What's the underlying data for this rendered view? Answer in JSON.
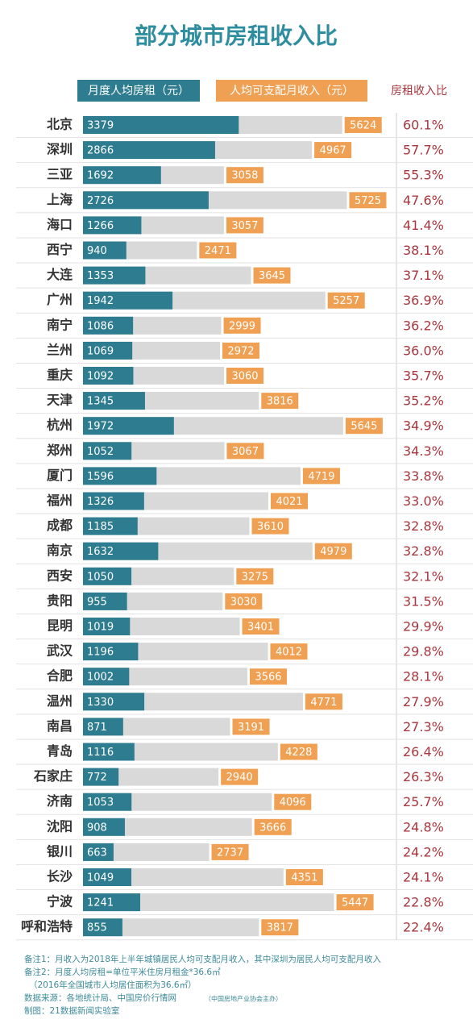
{
  "chart_data": {
    "type": "bar",
    "title": "部分城市房租收入比",
    "categories": [
      "北京",
      "深圳",
      "三亚",
      "上海",
      "海口",
      "西宁",
      "大连",
      "广州",
      "南宁",
      "兰州",
      "重庆",
      "天津",
      "杭州",
      "郑州",
      "厦门",
      "福州",
      "成都",
      "南京",
      "西安",
      "贵阳",
      "昆明",
      "武汉",
      "合肥",
      "温州",
      "南昌",
      "青岛",
      "石家庄",
      "济南",
      "沈阳",
      "银川",
      "长沙",
      "宁波",
      "呼和浩特"
    ],
    "series": [
      {
        "name": "月度人均房租（元）",
        "color": "#2e7c90",
        "values": [
          3379,
          2866,
          1692,
          2726,
          1266,
          940,
          1353,
          1942,
          1086,
          1069,
          1092,
          1345,
          1972,
          1052,
          1596,
          1326,
          1185,
          1632,
          1050,
          955,
          1019,
          1196,
          1002,
          1330,
          871,
          1116,
          772,
          1053,
          908,
          663,
          1049,
          1241,
          855
        ]
      },
      {
        "name": "人均可支配月收入（元）",
        "color": "#f0a052",
        "values": [
          5624,
          4967,
          3058,
          5725,
          3057,
          2471,
          3645,
          5257,
          2999,
          2972,
          3060,
          3816,
          5645,
          3067,
          4719,
          4021,
          3610,
          4979,
          3275,
          3030,
          3401,
          4012,
          3566,
          4771,
          3191,
          4228,
          2940,
          4096,
          3666,
          2737,
          4351,
          5447,
          3817
        ]
      },
      {
        "name": "房租收入比",
        "color": "#a8363d",
        "values": [
          60.1,
          57.7,
          55.3,
          47.6,
          41.4,
          38.1,
          37.1,
          36.9,
          36.2,
          36.0,
          35.7,
          35.2,
          34.9,
          34.3,
          33.8,
          33.0,
          32.8,
          32.8,
          32.1,
          31.5,
          29.9,
          29.8,
          28.1,
          27.9,
          27.3,
          26.4,
          26.3,
          25.7,
          24.8,
          24.2,
          24.1,
          22.8,
          22.4
        ],
        "value_labels": [
          "60.1%",
          "57.7%",
          "55.3%",
          "47.6%",
          "41.4%",
          "38.1%",
          "37.1%",
          "36.9%",
          "36.2%",
          "36.0%",
          "35.7%",
          "35.2%",
          "34.9%",
          "34.3%",
          "33.8%",
          "33.0%",
          "32.8%",
          "32.8%",
          "32.1%",
          "31.5%",
          "29.9%",
          "29.8%",
          "28.1%",
          "27.9%",
          "27.3%",
          "26.4%",
          "26.3%",
          "25.7%",
          "24.8%",
          "24.2%",
          "24.1%",
          "22.8%",
          "22.4%"
        ]
      }
    ],
    "notes": [
      "备注1：月收入为2018年上半年城镇居民人均可支配月收入，其中深圳为居民人均可支配月收入",
      "备注2：月度人均房租=单位平米住房月租金*36.6㎡",
      "（2016年全国城市人均居住面积为36.6㎡）",
      "数据来源：各地统计局、中国房价行情网",
      "（中国房地产业协会主办）",
      "制图：21数据新闻实验室"
    ]
  }
}
